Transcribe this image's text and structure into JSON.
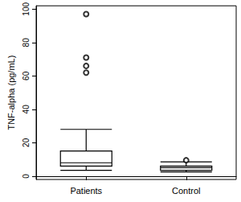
{
  "chart_data": {
    "type": "boxplot",
    "y_label": "TNF-alpha (pg/mL)",
    "categories": [
      "Patients",
      "Control"
    ],
    "values": [
      [
        3.5,
        6,
        8,
        15,
        28
      ],
      [
        2.5,
        3.5,
        5,
        6,
        8.5
      ]
    ],
    "outliers": [
      [
        97,
        71,
        66,
        62
      ],
      [
        9.5
      ]
    ],
    "color": "#000000",
    "ylim": [
      -2,
      102
    ],
    "yticks": [
      0,
      20,
      40,
      60,
      80,
      100
    ],
    "grid": false
  }
}
